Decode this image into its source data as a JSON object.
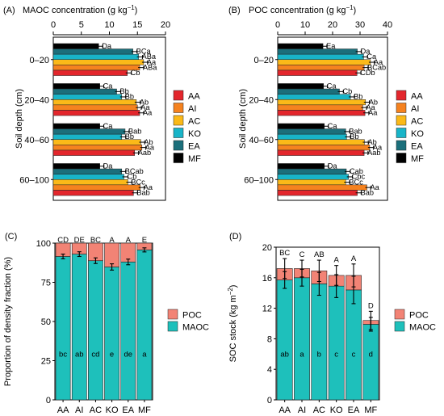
{
  "colors": {
    "AA": "#E3262C",
    "AI": "#F5821F",
    "AC": "#FBB918",
    "KO": "#18B4C8",
    "EA": "#1B6F7B",
    "MF": "#000000",
    "POC": "#F28375",
    "MAOC": "#1EC0BB"
  },
  "chart_data": [
    {
      "panel": "(A)",
      "type": "bar",
      "orientation": "horizontal",
      "title": "MAOC concentration (g kg⁻¹)",
      "title_main": "MAOC concentration (g kg",
      "title_sup": "−1",
      "title_close": ")",
      "ylabel": "Soil depth (cm)",
      "xlim": [
        0,
        20
      ],
      "xticks": [
        "0",
        "5",
        "10",
        "15",
        "20"
      ],
      "categories": [
        "0–20",
        "20–40",
        "40–60",
        "60–100"
      ],
      "series": [
        {
          "name": "MF",
          "values": [
            8.1,
            8.3,
            8.3,
            8.3
          ],
          "labels": [
            "Da",
            "Ca",
            "Ca",
            "Da"
          ]
        },
        {
          "name": "EA",
          "values": [
            14.2,
            11.3,
            12.8,
            12.2
          ],
          "labels": [
            "BCa",
            "Bb",
            "Bab",
            "BCab"
          ]
        },
        {
          "name": "KO",
          "values": [
            15.2,
            12.2,
            12.2,
            12.6
          ],
          "labels": [
            "ABa",
            "Bb",
            "Bb",
            "Cb"
          ]
        },
        {
          "name": "AC",
          "values": [
            16.1,
            14.8,
            15.6,
            13.3
          ],
          "labels": [
            "Aa",
            "Ab",
            "Ab",
            "BCc"
          ]
        },
        {
          "name": "AI",
          "values": [
            15.4,
            15.0,
            15.8,
            15.5
          ],
          "labels": [
            "ABa",
            "Aa",
            "Aa",
            "Aa"
          ]
        },
        {
          "name": "AA",
          "values": [
            13.2,
            15.4,
            14.5,
            14.3
          ],
          "labels": [
            "Cb",
            "Aa",
            "Aab",
            "Bab"
          ]
        }
      ],
      "legend": [
        "AA",
        "AI",
        "AC",
        "KO",
        "EA",
        "MF"
      ],
      "legend_position": "right"
    },
    {
      "panel": "(B)",
      "type": "bar",
      "orientation": "horizontal",
      "title": "POC concentration (g kg⁻¹)",
      "title_main": "POC concentration (g kg",
      "title_sup": "−1",
      "title_close": ")",
      "ylabel": "Soil depth (cm)",
      "xlim": [
        0,
        40
      ],
      "xticks": [
        "0",
        "10",
        "20",
        "30",
        "40"
      ],
      "categories": [
        "0–20",
        "20–40",
        "40–60",
        "60–100"
      ],
      "series": [
        {
          "name": "MF",
          "values": [
            16.5,
            16.7,
            17.0,
            17.0
          ],
          "labels": [
            "Ea",
            "Ca",
            "Ca",
            "Da"
          ]
        },
        {
          "name": "EA",
          "values": [
            29.0,
            22.5,
            24.8,
            25.0
          ],
          "labels": [
            "Da",
            "Cb",
            "Bab",
            "Cab"
          ]
        },
        {
          "name": "KO",
          "values": [
            31.3,
            26.5,
            25.1,
            25.8
          ],
          "labels": [
            "Ca",
            "Bb",
            "Bb",
            "Cbc"
          ]
        },
        {
          "name": "AC",
          "values": [
            33.8,
            32.0,
            31.6,
            24.8
          ],
          "labels": [
            "Aa",
            "Ab",
            "Ab",
            "BCc"
          ]
        },
        {
          "name": "AI",
          "values": [
            31.5,
            31.0,
            33.5,
            32.5
          ],
          "labels": [
            "BCab",
            "Aa",
            "Aa",
            "Aa"
          ]
        },
        {
          "name": "AA",
          "values": [
            28.9,
            31.8,
            31.5,
            29.0
          ],
          "labels": [
            "CDb",
            "Aa",
            "Aab",
            "Bab"
          ]
        }
      ],
      "legend": [
        "AA",
        "AI",
        "AC",
        "KO",
        "EA",
        "MF"
      ],
      "legend_position": "right"
    },
    {
      "panel": "(C)",
      "type": "bar",
      "stacked": true,
      "title": "",
      "xlabel": "",
      "ylabel": "Proportion of density fraction (%)",
      "ylim": [
        0,
        100
      ],
      "yticks": [
        "0",
        "25",
        "50",
        "75",
        "100"
      ],
      "categories": [
        "AA",
        "AI",
        "AC",
        "KO",
        "EA",
        "MF"
      ],
      "series": [
        {
          "name": "MAOC",
          "values": [
            91.5,
            93.0,
            88.8,
            84.8,
            88.0,
            95.7
          ],
          "labels": [
            "bc",
            "ab",
            "cd",
            "e",
            "de",
            "a"
          ]
        },
        {
          "name": "POC",
          "values": [
            8.5,
            7.0,
            11.2,
            15.2,
            12.0,
            4.3
          ],
          "labels": [
            "CD",
            "DE",
            "BC",
            "A",
            "A",
            "E"
          ]
        }
      ],
      "legend": [
        "POC",
        "MAOC"
      ],
      "legend_position": "right"
    },
    {
      "panel": "(D)",
      "type": "bar",
      "stacked": true,
      "title": "",
      "xlabel": "",
      "ylabel": "SOC stock (kg m⁻²)",
      "ylabel_main": "SOC stock (kg m",
      "ylabel_sup": "−2",
      "ylabel_close": ")",
      "ylim": [
        0,
        20
      ],
      "yticks": [
        "0",
        "4",
        "8",
        "12",
        "16",
        "20"
      ],
      "categories": [
        "AA",
        "AI",
        "AC",
        "KO",
        "EA",
        "MF"
      ],
      "series": [
        {
          "name": "MAOC",
          "values": [
            15.7,
            16.0,
            15.2,
            14.9,
            14.4,
            9.9
          ],
          "labels": [
            "ab",
            "a",
            "b",
            "c",
            "c",
            "d"
          ]
        },
        {
          "name": "POC",
          "values": [
            1.5,
            1.2,
            1.7,
            1.4,
            1.9,
            0.5
          ],
          "labels": [
            "BC",
            "C",
            "AB",
            "A",
            "A",
            "D"
          ]
        }
      ],
      "legend": [
        "POC",
        "MAOC"
      ],
      "legend_position": "right"
    }
  ]
}
